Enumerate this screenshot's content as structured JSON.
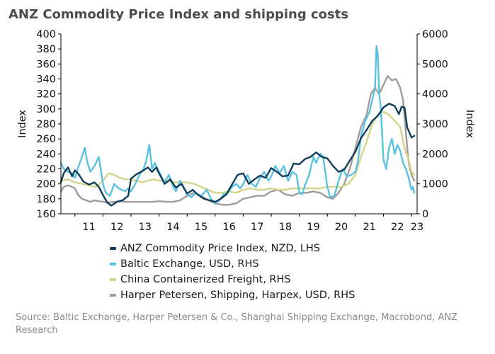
{
  "chart_data": {
    "type": "line",
    "title": "ANZ Commodity Price Index and shipping costs",
    "xlabel": "",
    "ylabel_left": "Index",
    "ylabel_right": "Index",
    "x_tick_labels": [
      "11",
      "12",
      "13",
      "14",
      "15",
      "16",
      "17",
      "18",
      "19",
      "20",
      "21",
      "22",
      "23"
    ],
    "y_left_ticks": [
      160,
      180,
      200,
      220,
      240,
      260,
      280,
      300,
      320,
      340,
      360,
      380,
      400
    ],
    "y_right_ticks": [
      0,
      1000,
      2000,
      3000,
      4000,
      5000,
      6000
    ],
    "ylim_left": [
      160,
      400
    ],
    "ylim_right": [
      0,
      6000
    ],
    "xlim": [
      2010.5,
      2023.2
    ],
    "grid": false,
    "legend_position": "bottom",
    "series": [
      {
        "name": "ANZ Commodity Price Index, NZD, LHS",
        "axis": "left",
        "color": "#0f3e5a",
        "points": [
          [
            2010.5,
            202
          ],
          [
            2010.6,
            214
          ],
          [
            2010.75,
            222
          ],
          [
            2010.9,
            210
          ],
          [
            2011.0,
            218
          ],
          [
            2011.15,
            212
          ],
          [
            2011.3,
            203
          ],
          [
            2011.5,
            199
          ],
          [
            2011.7,
            202
          ],
          [
            2011.85,
            196
          ],
          [
            2012.0,
            185
          ],
          [
            2012.15,
            175
          ],
          [
            2012.3,
            171
          ],
          [
            2012.5,
            176
          ],
          [
            2012.7,
            178
          ],
          [
            2012.9,
            184
          ],
          [
            2013.0,
            207
          ],
          [
            2013.2,
            213
          ],
          [
            2013.4,
            217
          ],
          [
            2013.6,
            222
          ],
          [
            2013.75,
            216
          ],
          [
            2013.9,
            222
          ],
          [
            2014.0,
            214
          ],
          [
            2014.2,
            200
          ],
          [
            2014.4,
            206
          ],
          [
            2014.6,
            195
          ],
          [
            2014.8,
            200
          ],
          [
            2015.0,
            187
          ],
          [
            2015.2,
            192
          ],
          [
            2015.4,
            185
          ],
          [
            2015.6,
            180
          ],
          [
            2015.8,
            178
          ],
          [
            2016.0,
            176
          ],
          [
            2016.2,
            180
          ],
          [
            2016.4,
            186
          ],
          [
            2016.6,
            199
          ],
          [
            2016.8,
            212
          ],
          [
            2017.0,
            214
          ],
          [
            2017.2,
            200
          ],
          [
            2017.4,
            206
          ],
          [
            2017.6,
            211
          ],
          [
            2017.8,
            208
          ],
          [
            2018.0,
            221
          ],
          [
            2018.2,
            216
          ],
          [
            2018.4,
            210
          ],
          [
            2018.6,
            211
          ],
          [
            2018.8,
            227
          ],
          [
            2019.0,
            226
          ],
          [
            2019.2,
            233
          ],
          [
            2019.4,
            236
          ],
          [
            2019.6,
            242
          ],
          [
            2019.8,
            236
          ],
          [
            2020.0,
            234
          ],
          [
            2020.2,
            224
          ],
          [
            2020.4,
            216
          ],
          [
            2020.6,
            219
          ],
          [
            2020.8,
            231
          ],
          [
            2021.0,
            243
          ],
          [
            2021.2,
            261
          ],
          [
            2021.4,
            272
          ],
          [
            2021.6,
            284
          ],
          [
            2021.8,
            291
          ],
          [
            2022.0,
            302
          ],
          [
            2022.2,
            307
          ],
          [
            2022.4,
            304
          ],
          [
            2022.55,
            293
          ],
          [
            2022.65,
            303
          ],
          [
            2022.75,
            302
          ],
          [
            2022.85,
            275
          ],
          [
            2023.0,
            262
          ],
          [
            2023.1,
            264
          ]
        ]
      },
      {
        "name": "Baltic Exchange, USD, RHS",
        "axis": "right",
        "color": "#5bc1e3",
        "points": [
          [
            2010.5,
            1700
          ],
          [
            2010.6,
            1500
          ],
          [
            2010.75,
            1400
          ],
          [
            2010.9,
            1350
          ],
          [
            2011.0,
            1200
          ],
          [
            2011.1,
            1500
          ],
          [
            2011.25,
            1900
          ],
          [
            2011.35,
            2200
          ],
          [
            2011.45,
            1700
          ],
          [
            2011.55,
            1400
          ],
          [
            2011.7,
            1600
          ],
          [
            2011.85,
            1900
          ],
          [
            2012.0,
            1000
          ],
          [
            2012.1,
            700
          ],
          [
            2012.25,
            600
          ],
          [
            2012.4,
            1000
          ],
          [
            2012.5,
            900
          ],
          [
            2012.65,
            800
          ],
          [
            2012.8,
            750
          ],
          [
            2012.9,
            850
          ],
          [
            2013.0,
            750
          ],
          [
            2013.15,
            1000
          ],
          [
            2013.3,
            1300
          ],
          [
            2013.45,
            1500
          ],
          [
            2013.55,
            1800
          ],
          [
            2013.65,
            2300
          ],
          [
            2013.75,
            1500
          ],
          [
            2013.85,
            1700
          ],
          [
            2014.0,
            1400
          ],
          [
            2014.2,
            1050
          ],
          [
            2014.35,
            1300
          ],
          [
            2014.5,
            900
          ],
          [
            2014.6,
            750
          ],
          [
            2014.75,
            1100
          ],
          [
            2014.9,
            850
          ],
          [
            2015.0,
            650
          ],
          [
            2015.15,
            550
          ],
          [
            2015.3,
            700
          ],
          [
            2015.5,
            600
          ],
          [
            2015.7,
            800
          ],
          [
            2015.85,
            500
          ],
          [
            2016.0,
            350
          ],
          [
            2016.15,
            450
          ],
          [
            2016.3,
            650
          ],
          [
            2016.45,
            700
          ],
          [
            2016.6,
            900
          ],
          [
            2016.75,
            1000
          ],
          [
            2016.9,
            850
          ],
          [
            2017.0,
            1000
          ],
          [
            2017.15,
            1300
          ],
          [
            2017.3,
            1000
          ],
          [
            2017.45,
            900
          ],
          [
            2017.6,
            1200
          ],
          [
            2017.75,
            1400
          ],
          [
            2017.9,
            1100
          ],
          [
            2018.0,
            1250
          ],
          [
            2018.15,
            1600
          ],
          [
            2018.3,
            1350
          ],
          [
            2018.45,
            1600
          ],
          [
            2018.6,
            1100
          ],
          [
            2018.75,
            1400
          ],
          [
            2018.9,
            1300
          ],
          [
            2019.0,
            700
          ],
          [
            2019.1,
            650
          ],
          [
            2019.2,
            950
          ],
          [
            2019.35,
            1300
          ],
          [
            2019.5,
            1900
          ],
          [
            2019.6,
            1700
          ],
          [
            2019.75,
            2000
          ],
          [
            2019.85,
            1900
          ],
          [
            2020.0,
            900
          ],
          [
            2020.1,
            550
          ],
          [
            2020.25,
            600
          ],
          [
            2020.4,
            1100
          ],
          [
            2020.55,
            1500
          ],
          [
            2020.7,
            1250
          ],
          [
            2020.85,
            1300
          ],
          [
            2021.0,
            1400
          ],
          [
            2021.1,
            1800
          ],
          [
            2021.2,
            2600
          ],
          [
            2021.35,
            3100
          ],
          [
            2021.5,
            3400
          ],
          [
            2021.6,
            3800
          ],
          [
            2021.7,
            4200
          ],
          [
            2021.75,
            5600
          ],
          [
            2021.8,
            5300
          ],
          [
            2021.85,
            4000
          ],
          [
            2021.9,
            3600
          ],
          [
            2022.0,
            1800
          ],
          [
            2022.1,
            1500
          ],
          [
            2022.2,
            2200
          ],
          [
            2022.3,
            2500
          ],
          [
            2022.4,
            2000
          ],
          [
            2022.5,
            2300
          ],
          [
            2022.6,
            2100
          ],
          [
            2022.7,
            1700
          ],
          [
            2022.8,
            1500
          ],
          [
            2022.9,
            1200
          ],
          [
            2023.0,
            800
          ],
          [
            2023.05,
            900
          ],
          [
            2023.1,
            700
          ]
        ]
      },
      {
        "name": "China Containerized Freight, RHS",
        "axis": "right",
        "color": "#d4d58a",
        "points": [
          [
            2010.5,
            1100
          ],
          [
            2010.75,
            1150
          ],
          [
            2011.0,
            1050
          ],
          [
            2011.25,
            1000
          ],
          [
            2011.5,
            950
          ],
          [
            2011.75,
            900
          ],
          [
            2012.0,
            1100
          ],
          [
            2012.2,
            1350
          ],
          [
            2012.4,
            1300
          ],
          [
            2012.6,
            1200
          ],
          [
            2012.8,
            1150
          ],
          [
            2013.0,
            1150
          ],
          [
            2013.2,
            1100
          ],
          [
            2013.4,
            1050
          ],
          [
            2013.6,
            1100
          ],
          [
            2013.8,
            1150
          ],
          [
            2014.0,
            1100
          ],
          [
            2014.25,
            1100
          ],
          [
            2014.5,
            1050
          ],
          [
            2014.75,
            1050
          ],
          [
            2015.0,
            1050
          ],
          [
            2015.25,
            1000
          ],
          [
            2015.5,
            900
          ],
          [
            2015.75,
            800
          ],
          [
            2016.0,
            700
          ],
          [
            2016.25,
            700
          ],
          [
            2016.5,
            750
          ],
          [
            2016.75,
            700
          ],
          [
            2017.0,
            800
          ],
          [
            2017.25,
            850
          ],
          [
            2017.5,
            800
          ],
          [
            2017.75,
            800
          ],
          [
            2018.0,
            850
          ],
          [
            2018.25,
            800
          ],
          [
            2018.5,
            800
          ],
          [
            2018.75,
            850
          ],
          [
            2019.0,
            850
          ],
          [
            2019.25,
            850
          ],
          [
            2019.5,
            850
          ],
          [
            2019.75,
            850
          ],
          [
            2020.0,
            900
          ],
          [
            2020.25,
            900
          ],
          [
            2020.5,
            900
          ],
          [
            2020.75,
            1000
          ],
          [
            2021.0,
            1300
          ],
          [
            2021.2,
            1900
          ],
          [
            2021.4,
            2400
          ],
          [
            2021.6,
            3000
          ],
          [
            2021.8,
            3300
          ],
          [
            2022.0,
            3400
          ],
          [
            2022.2,
            3300
          ],
          [
            2022.4,
            3100
          ],
          [
            2022.6,
            2900
          ],
          [
            2022.75,
            2200
          ],
          [
            2022.9,
            1800
          ],
          [
            2023.0,
            1400
          ],
          [
            2023.1,
            1300
          ]
        ]
      },
      {
        "name": "Harper Petersen, Shipping, Harpex, USD, RHS",
        "axis": "right",
        "color": "#a39b9a",
        "points": [
          [
            2010.5,
            750
          ],
          [
            2010.6,
            900
          ],
          [
            2010.75,
            950
          ],
          [
            2010.9,
            900
          ],
          [
            2011.0,
            850
          ],
          [
            2011.1,
            650
          ],
          [
            2011.25,
            500
          ],
          [
            2011.4,
            450
          ],
          [
            2011.55,
            400
          ],
          [
            2011.7,
            450
          ],
          [
            2011.85,
            420
          ],
          [
            2012.0,
            400
          ],
          [
            2012.2,
            380
          ],
          [
            2012.4,
            400
          ],
          [
            2012.6,
            420
          ],
          [
            2012.8,
            400
          ],
          [
            2013.0,
            400
          ],
          [
            2013.25,
            400
          ],
          [
            2013.5,
            400
          ],
          [
            2013.75,
            400
          ],
          [
            2014.0,
            420
          ],
          [
            2014.25,
            400
          ],
          [
            2014.5,
            400
          ],
          [
            2014.75,
            450
          ],
          [
            2015.0,
            600
          ],
          [
            2015.25,
            700
          ],
          [
            2015.5,
            600
          ],
          [
            2015.75,
            450
          ],
          [
            2016.0,
            350
          ],
          [
            2016.25,
            300
          ],
          [
            2016.5,
            300
          ],
          [
            2016.75,
            350
          ],
          [
            2017.0,
            500
          ],
          [
            2017.25,
            550
          ],
          [
            2017.5,
            600
          ],
          [
            2017.75,
            600
          ],
          [
            2018.0,
            750
          ],
          [
            2018.25,
            800
          ],
          [
            2018.5,
            650
          ],
          [
            2018.75,
            600
          ],
          [
            2019.0,
            700
          ],
          [
            2019.25,
            700
          ],
          [
            2019.5,
            750
          ],
          [
            2019.75,
            700
          ],
          [
            2020.0,
            550
          ],
          [
            2020.2,
            500
          ],
          [
            2020.4,
            700
          ],
          [
            2020.6,
            1000
          ],
          [
            2020.8,
            1500
          ],
          [
            2021.0,
            2200
          ],
          [
            2021.2,
            2900
          ],
          [
            2021.4,
            3300
          ],
          [
            2021.55,
            4000
          ],
          [
            2021.7,
            4200
          ],
          [
            2021.85,
            4000
          ],
          [
            2022.0,
            4300
          ],
          [
            2022.15,
            4600
          ],
          [
            2022.3,
            4450
          ],
          [
            2022.45,
            4500
          ],
          [
            2022.6,
            4200
          ],
          [
            2022.7,
            3800
          ],
          [
            2022.8,
            2700
          ],
          [
            2022.9,
            1700
          ],
          [
            2023.0,
            1300
          ],
          [
            2023.1,
            1100
          ]
        ]
      }
    ]
  },
  "source_note": "Source: Baltic Exchange, Harper Petersen & Co., Shanghai Shipping Exchange, Macrobond, ANZ Research"
}
